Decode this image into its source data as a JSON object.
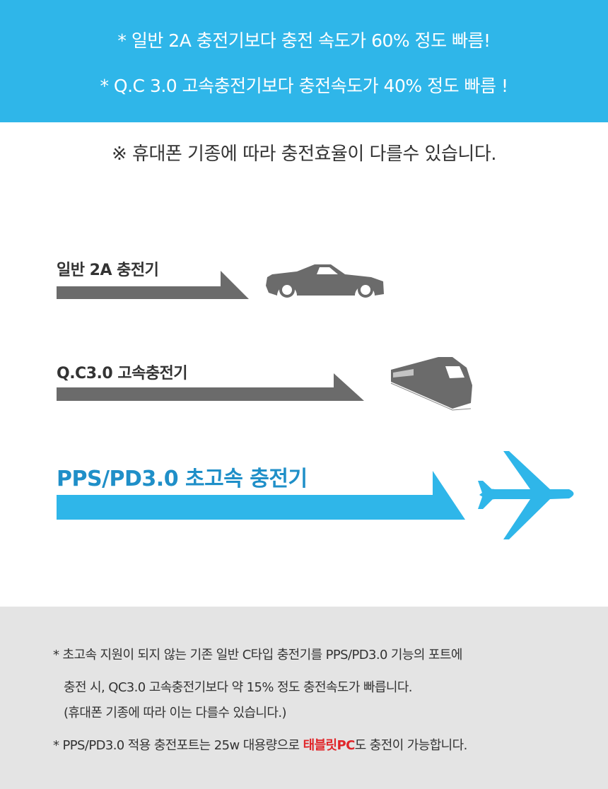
{
  "banner": {
    "line1": "* 일반 2A 충전기보다 충전 속도가 60% 정도 빠름!",
    "line2": "* Q.C 3.0 고속충전기보다 충전속도가 40% 정도 빠름 !",
    "color": "#2fb6e9"
  },
  "note": "※ 휴대폰 기종에 따라 충전효율이 다를수 있습니다.",
  "comparison": [
    {
      "label": "일반 2A 충전기",
      "icon": "car-icon",
      "color": "#6b6b6b"
    },
    {
      "label": "Q.C3.0 고속충전기",
      "icon": "train-icon",
      "color": "#6b6b6b"
    },
    {
      "label": "PPS/PD3.0 초고속 충전기",
      "icon": "airplane-icon",
      "color": "#2fb6e9"
    }
  ],
  "footer": {
    "line1": "* 초고속 지원이 되지 않는 기존 일반 C타입 충전기를 PPS/PD3.0 기능의 포트에",
    "line2": "충전 시, QC3.0 고속충전기보다 약 15% 정도 충전속도가 빠릅니다.",
    "line3": "(휴대폰 기종에 따라 이는 다를수 있습니다.)",
    "line4_pre": "* PPS/PD3.0 적용 충전포트는 25w 대용량으로 ",
    "line4_highlight": "태블릿PC",
    "line4_post": "도 충전이 가능합니다.",
    "highlight_color": "#e0262a"
  }
}
